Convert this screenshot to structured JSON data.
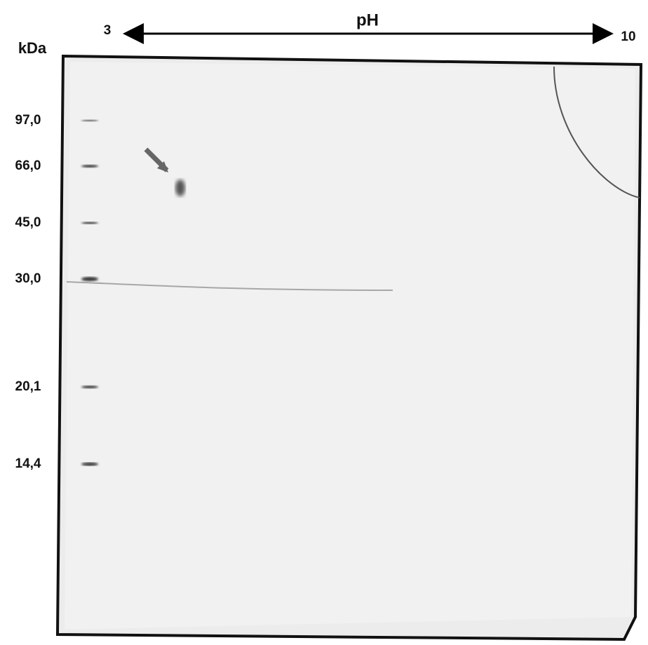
{
  "header": {
    "axis_label": "pH",
    "ph_start": "3",
    "ph_end": "10"
  },
  "markers": {
    "unit": "kDa",
    "labels": [
      "97,0",
      "66,0",
      "45,0",
      "30,0",
      "20,1",
      "14,4"
    ]
  }
}
